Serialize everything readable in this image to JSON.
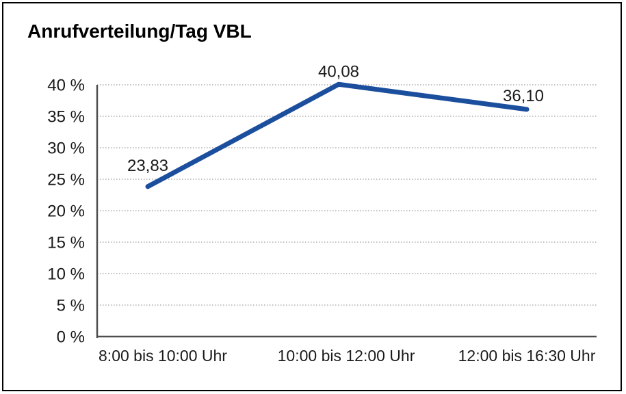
{
  "chart_data": {
    "type": "line",
    "title": "Anrufverteilung/Tag VBL",
    "categories": [
      "8:00 bis 10:00 Uhr",
      "10:00 bis 12:00 Uhr",
      "12:00 bis 16:30 Uhr"
    ],
    "values": [
      23.83,
      40.08,
      36.1
    ],
    "data_labels": [
      "23,83",
      "40,08",
      "36,10"
    ],
    "xlabel": "",
    "ylabel": "",
    "ylim": [
      0,
      40
    ],
    "ytick_step": 5,
    "ytick_labels": [
      "0 %",
      "5 %",
      "10 %",
      "15 %",
      "20 %",
      "25 %",
      "30 %",
      "35 %",
      "40 %"
    ],
    "grid": "horizontal-dotted",
    "legend_position": "none",
    "line_color": "#1b4f9e",
    "axis_color": "#4d4d4d",
    "gridline_color": "#9b9b9b",
    "text_color": "#1a1a1a",
    "frame_border_color": "#000000",
    "background_color": "#ffffff"
  }
}
